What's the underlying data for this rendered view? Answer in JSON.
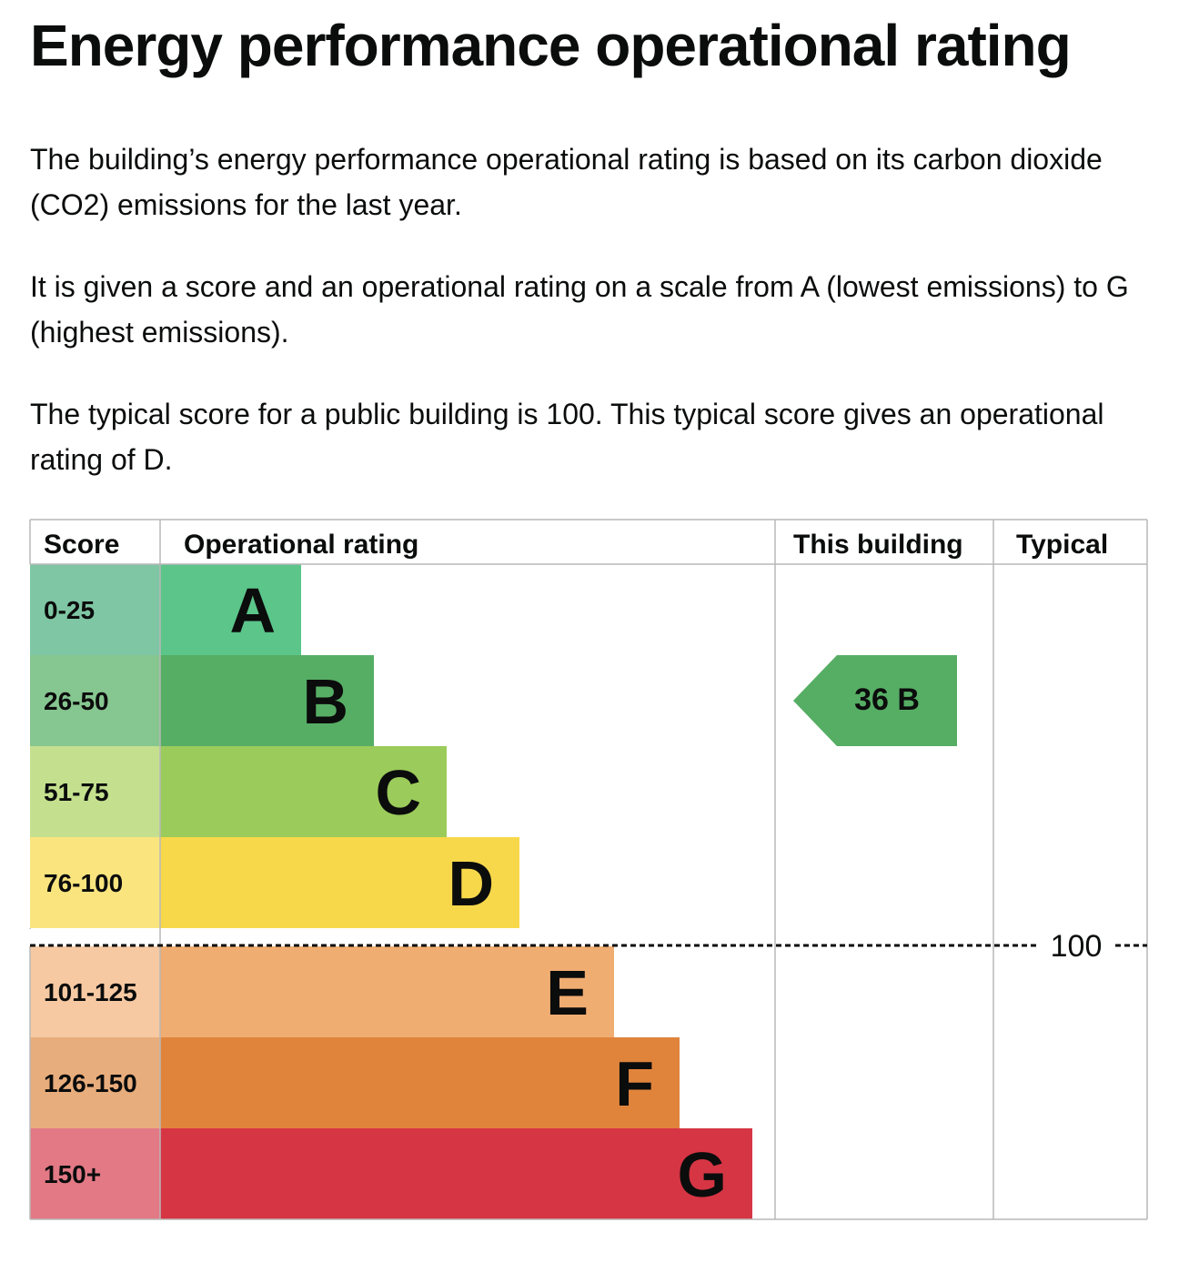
{
  "page": {
    "title": "Energy performance operational rating",
    "paragraphs": [
      "The building’s energy performance operational rating is based on its carbon dioxide (CO2) emissions for the last year.",
      "It is given a score and an operational rating on a scale from A (lowest emissions) to G (highest emissions).",
      "The typical score for a public building is 100. This typical score gives an operational rating of D."
    ]
  },
  "chart_data": {
    "type": "bar",
    "columns": [
      "Score",
      "Operational rating",
      "This building",
      "Typical"
    ],
    "bands": [
      {
        "letter": "A",
        "range": "0-25",
        "color": "#5bc58a",
        "score_color": "#7fc6a4"
      },
      {
        "letter": "B",
        "range": "26-50",
        "color": "#56ae64",
        "score_color": "#86c690"
      },
      {
        "letter": "C",
        "range": "51-75",
        "color": "#9bcb5a",
        "score_color": "#c4e08e"
      },
      {
        "letter": "D",
        "range": "76-100",
        "color": "#f7d84a",
        "score_color": "#fae47e"
      },
      {
        "letter": "E",
        "range": "101-125",
        "color": "#f0ad72",
        "score_color": "#f6c9a2"
      },
      {
        "letter": "F",
        "range": "126-150",
        "color": "#e0843c",
        "score_color": "#e8ad7c"
      },
      {
        "letter": "G",
        "range": "150+",
        "color": "#d63544",
        "score_color": "#e27985"
      }
    ],
    "this_building": {
      "score": 36,
      "rating": "B",
      "label": "36  B",
      "color": "#56ae64"
    },
    "typical": {
      "score": 100,
      "label": "100"
    }
  }
}
